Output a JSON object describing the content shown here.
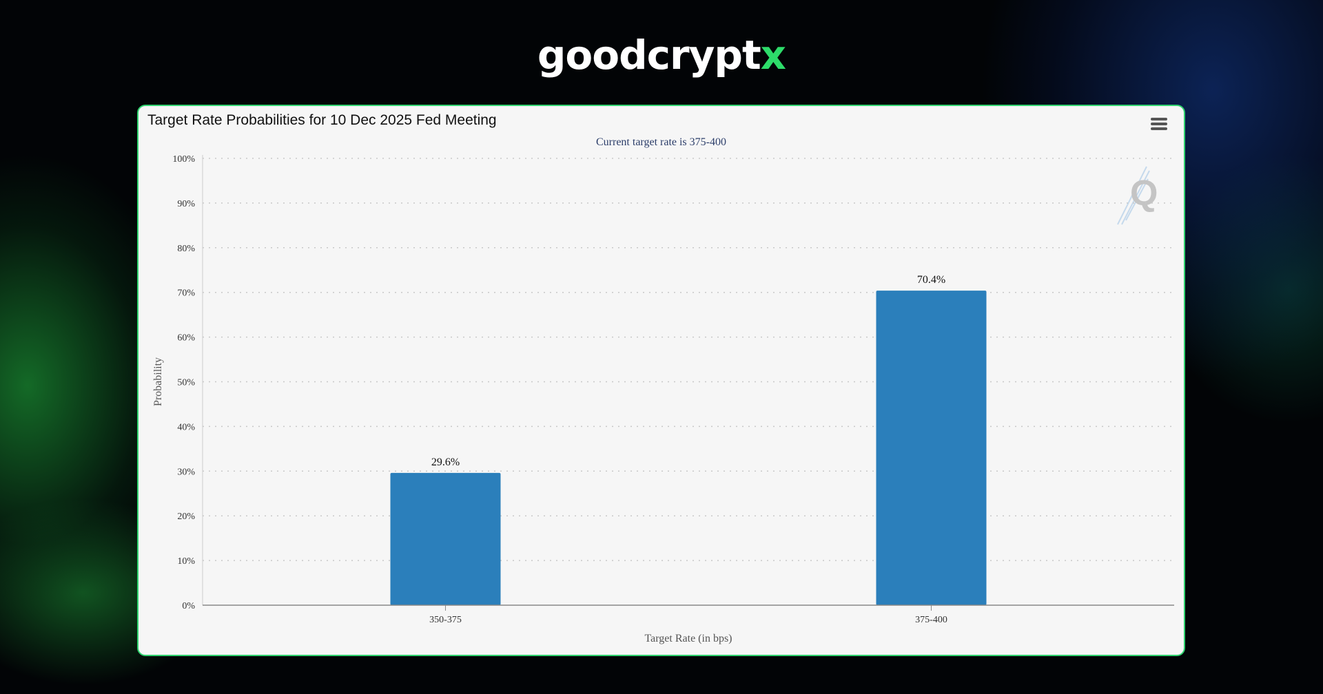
{
  "brand": {
    "name_main": "goodcrypt",
    "name_accent": "x"
  },
  "chart_data": {
    "type": "bar",
    "title": "Target Rate Probabilities for 10 Dec 2025 Fed Meeting",
    "subtitle": "Current target rate is 375-400",
    "categories": [
      "350-375",
      "375-400"
    ],
    "values": [
      29.6,
      70.4
    ],
    "data_labels": [
      "29.6%",
      "70.4%"
    ],
    "xlabel": "Target Rate (in bps)",
    "ylabel": "Probability",
    "ylim": [
      0,
      100
    ],
    "yticks": [
      "0%",
      "10%",
      "20%",
      "30%",
      "40%",
      "50%",
      "60%",
      "70%",
      "80%",
      "90%",
      "100%"
    ],
    "grid": true,
    "bar_color": "#2b7fbb"
  },
  "colors": {
    "card_border": "#2fd36e",
    "brand_accent": "#2ddc6a"
  },
  "icons": {
    "menu": "hamburger-menu-icon",
    "watermark": "q-logo-icon"
  }
}
